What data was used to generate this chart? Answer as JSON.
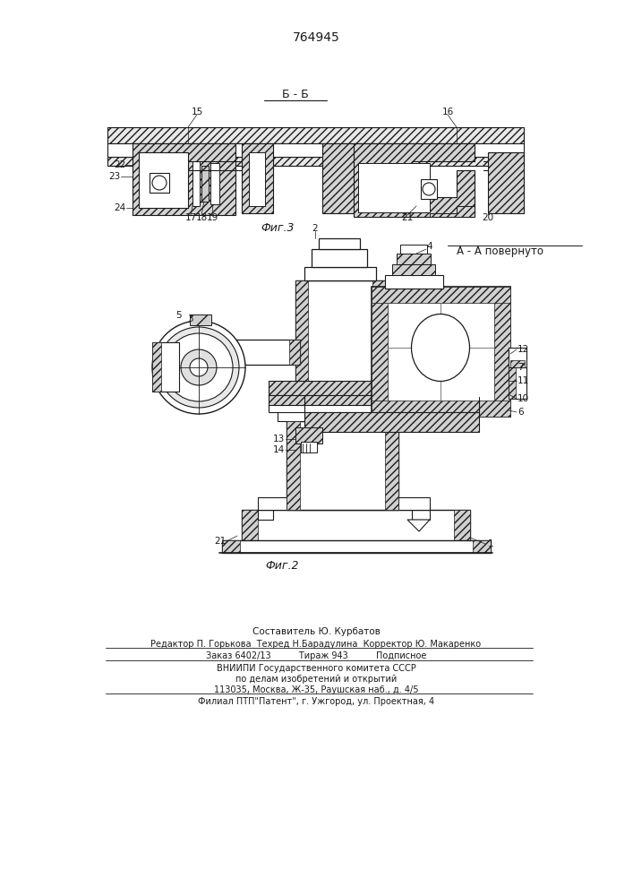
{
  "patent_number": "764945",
  "bg_color": "#ffffff",
  "line_color": "#1a1a1a",
  "footer": {
    "line1": "Составитель Ю. Курбатов",
    "line2": "Редактор П. Горькова  Техред Н.Барадулина  Корректор Ю. Макаренко",
    "line3": "Заказ 6402/13          Тираж 943          Подписное",
    "line4": "ВНИИПИ Государственного комитета СССР",
    "line5": "по делам изобретений и открытий",
    "line6": "113035, Москва, Ж-35, Раушская наб., д. 4/5",
    "line7": "Филиал ПТП\"Патент\", г. Ужгород, ул. Проектная, 4"
  },
  "fig3_caption": "Фиг.3",
  "fig2_caption": "Фиг.2",
  "section_label": "Б - Б",
  "view_label": "А - А повернуто"
}
